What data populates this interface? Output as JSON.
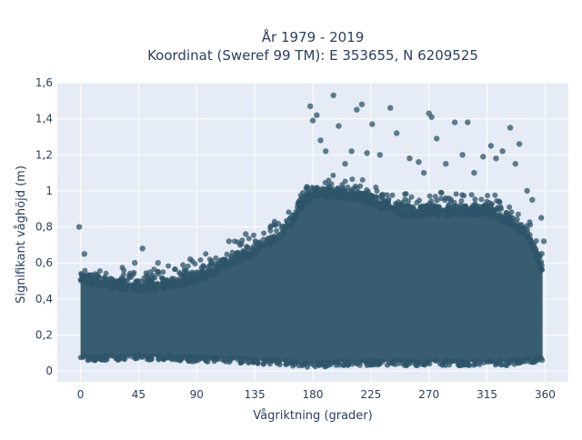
{
  "chart_data": {
    "type": "scatter",
    "title_lines": [
      "År 1979 - 2019",
      "Koordinat (Sweref 99 TM): E 353655, N 6209525"
    ],
    "xlabel": "Vågriktning (grader)",
    "ylabel": "Signifikant våghöjd (m)",
    "xlim": [
      -18,
      378
    ],
    "ylim": [
      -0.06,
      1.6
    ],
    "x_ticks": [
      0,
      45,
      90,
      135,
      180,
      225,
      270,
      315,
      360
    ],
    "x_tick_labels": [
      "0",
      "45",
      "90",
      "135",
      "180",
      "225",
      "270",
      "315",
      "360"
    ],
    "y_ticks": [
      0,
      0.2,
      0.4,
      0.6,
      0.8,
      1,
      1.2,
      1.4,
      1.6
    ],
    "y_tick_labels": [
      "0",
      "0,2",
      "0,4",
      "0,6",
      "0,8",
      "1",
      "1,2",
      "1,4",
      "1,6"
    ],
    "grid": true,
    "marker_color": "#2e5468",
    "plot_bg": "#e5ecf6",
    "envelope": {
      "direction_deg": [
        0,
        20,
        45,
        70,
        90,
        110,
        135,
        160,
        170,
        180,
        200,
        225,
        250,
        270,
        300,
        315,
        330,
        345,
        358
      ],
      "min_height_m": [
        0.05,
        0.06,
        0.06,
        0.06,
        0.05,
        0.05,
        0.04,
        0.03,
        0.02,
        0.02,
        0.03,
        0.03,
        0.03,
        0.03,
        0.03,
        0.03,
        0.03,
        0.04,
        0.05
      ],
      "max_height_m": [
        0.55,
        0.52,
        0.5,
        0.52,
        0.55,
        0.62,
        0.7,
        0.82,
        0.95,
        1.02,
        1.02,
        0.98,
        0.92,
        0.92,
        0.92,
        0.92,
        0.88,
        0.8,
        0.6
      ]
    },
    "outliers": {
      "x": [
        -1,
        3,
        42,
        48,
        60,
        85,
        115,
        128,
        178,
        180,
        183,
        186,
        190,
        196,
        200,
        205,
        210,
        214,
        218,
        222,
        226,
        232,
        240,
        245,
        255,
        262,
        266,
        270,
        272,
        276,
        283,
        290,
        296,
        300,
        305,
        312,
        318,
        322,
        327,
        333,
        337,
        340,
        346,
        350,
        357,
        359
      ],
      "y": [
        0.8,
        0.65,
        0.6,
        0.68,
        0.6,
        0.62,
        0.72,
        0.76,
        1.47,
        1.39,
        1.42,
        1.28,
        1.22,
        1.53,
        1.36,
        1.15,
        1.22,
        1.45,
        1.48,
        1.21,
        1.37,
        1.2,
        1.46,
        1.32,
        1.18,
        1.16,
        1.1,
        1.43,
        1.41,
        1.29,
        1.15,
        1.38,
        1.2,
        1.38,
        1.1,
        1.19,
        1.25,
        1.18,
        1.22,
        1.35,
        1.15,
        1.26,
        1.0,
        0.95,
        0.85,
        0.72
      ]
    }
  }
}
